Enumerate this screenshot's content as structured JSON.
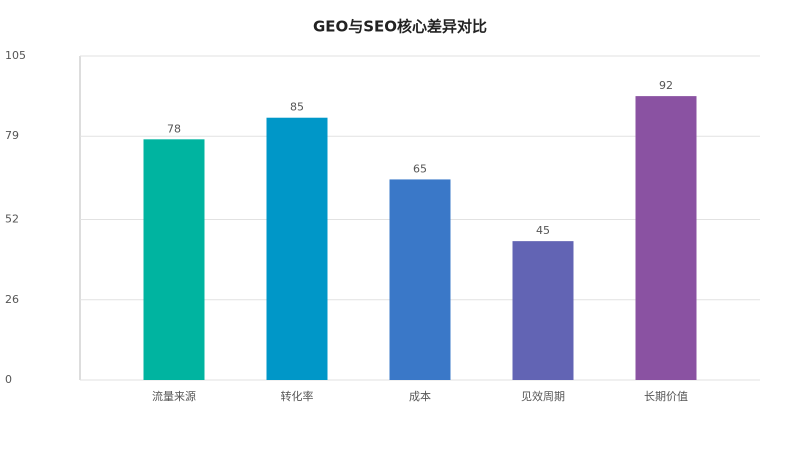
{
  "chart_data": {
    "type": "bar",
    "title": "GEO与SEO核心差异对比",
    "categories": [
      "流量来源",
      "转化率",
      "成本",
      "见效周期",
      "长期价值"
    ],
    "values": [
      78,
      85,
      65,
      45,
      92
    ],
    "colors": [
      "#00b4a0",
      "#0097c8",
      "#3a78c8",
      "#6264b4",
      "#8a52a2"
    ],
    "ylim": [
      0,
      105
    ],
    "yticks": [
      0,
      26,
      52,
      79,
      105
    ],
    "grid": true
  }
}
